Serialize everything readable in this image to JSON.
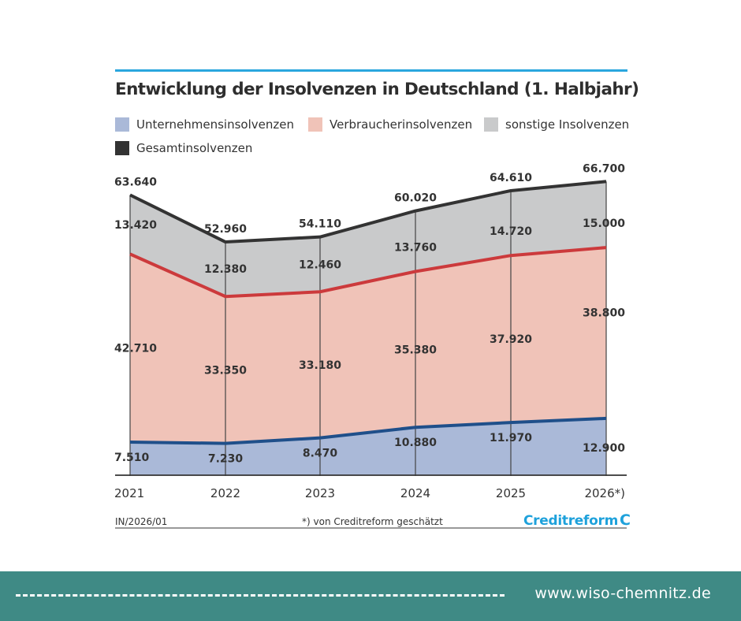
{
  "chart_data": {
    "type": "area",
    "title": "Entwicklung der Insolvenzen in Deutschland (1. Halbjahr)",
    "stacked": true,
    "x": [
      "2021",
      "2022",
      "2023",
      "2024",
      "2025",
      "2026*)"
    ],
    "series": [
      {
        "name": "Unternehmensinsolvenzen",
        "values": [
          7510,
          7230,
          8470,
          10880,
          11970,
          12900
        ],
        "labels": [
          "7.510",
          "7.230",
          "8.470",
          "10.880",
          "11.970",
          "12.900"
        ],
        "color": "#aab9d8",
        "line": "#1f4f8a"
      },
      {
        "name": "Verbraucherinsolvenzen",
        "values": [
          42710,
          33350,
          33180,
          35380,
          37920,
          38800
        ],
        "labels": [
          "42.710",
          "33.350",
          "33.180",
          "35.380",
          "37.920",
          "38.800"
        ],
        "color": "#f0c3b8",
        "line": "#cc3a3c"
      },
      {
        "name": "sonstige Insolvenzen",
        "values": [
          13420,
          12380,
          12460,
          13760,
          14720,
          15000
        ],
        "labels": [
          "13.420",
          "12.380",
          "12.460",
          "13.760",
          "14.720",
          "15.000"
        ],
        "color": "#c9cacb",
        "line": null
      }
    ],
    "total": {
      "name": "Gesamtinsolvenzen",
      "values": [
        63640,
        52960,
        54110,
        60020,
        64610,
        66700
      ],
      "labels": [
        "63.640",
        "52.960",
        "54.110",
        "60.020",
        "64.610",
        "66.700"
      ],
      "color": "#333333"
    },
    "ylim": [
      0,
      70000
    ],
    "grid": false,
    "legend": "top"
  },
  "notes": {
    "left": "IN/2026/01",
    "center": "*) von Creditreform geschätzt"
  },
  "logo": {
    "text": "Creditreform",
    "mark": "C"
  },
  "footer": {
    "url": "www.wiso-chemnitz.de"
  },
  "colors": {
    "footer_bg": "#3f8a85",
    "accent": "#2aa6de"
  }
}
